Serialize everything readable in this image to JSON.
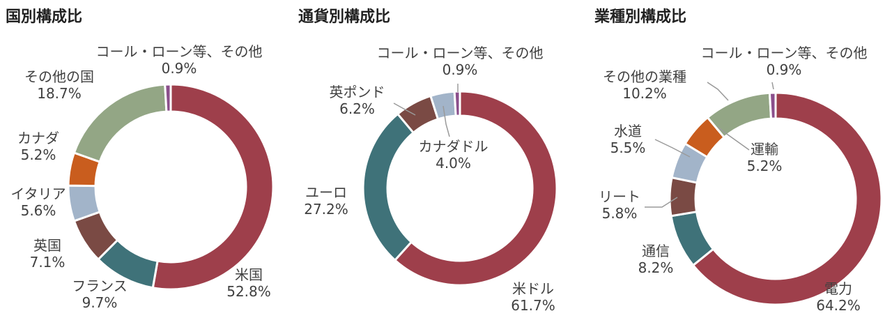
{
  "chart_data": [
    {
      "type": "pie",
      "title": "国別構成比",
      "categories": [
        "米国",
        "フランス",
        "英国",
        "イタリア",
        "カナダ",
        "その他の国",
        "コール・ローン等、その他"
      ],
      "values": [
        52.8,
        9.7,
        7.1,
        5.6,
        5.2,
        18.7,
        0.9
      ],
      "display": [
        "52.8%",
        "9.7%",
        "7.1%",
        "5.6%",
        "5.2%",
        "18.7%",
        "0.9%"
      ],
      "colors": [
        "#9e3f4b",
        "#3f7279",
        "#7a4a44",
        "#a2b4c9",
        "#c95d1e",
        "#93a685",
        "#8b4f8c"
      ]
    },
    {
      "type": "pie",
      "title": "通貨別構成比",
      "categories": [
        "米ドル",
        "ユーロ",
        "英ポンド",
        "カナダドル",
        "コール・ローン等、その他"
      ],
      "values": [
        61.7,
        27.2,
        6.2,
        4.0,
        0.9
      ],
      "display": [
        "61.7%",
        "27.2%",
        "6.2%",
        "4.0%",
        "0.9%"
      ],
      "colors": [
        "#9e3f4b",
        "#3f7279",
        "#7a4a44",
        "#a2b4c9",
        "#8b4f8c"
      ]
    },
    {
      "type": "pie",
      "title": "業種別構成比",
      "categories": [
        "電力",
        "通信",
        "リート",
        "水道",
        "運輸",
        "その他の業種",
        "コール・ローン等、その他"
      ],
      "values": [
        64.2,
        8.2,
        5.8,
        5.5,
        5.2,
        10.2,
        0.9
      ],
      "display": [
        "64.2%",
        "8.2%",
        "5.8%",
        "5.5%",
        "5.2%",
        "10.2%",
        "0.9%"
      ],
      "colors": [
        "#9e3f4b",
        "#3f7279",
        "#7a4a44",
        "#a2b4c9",
        "#c95d1e",
        "#93a685",
        "#8b4f8c"
      ]
    }
  ]
}
